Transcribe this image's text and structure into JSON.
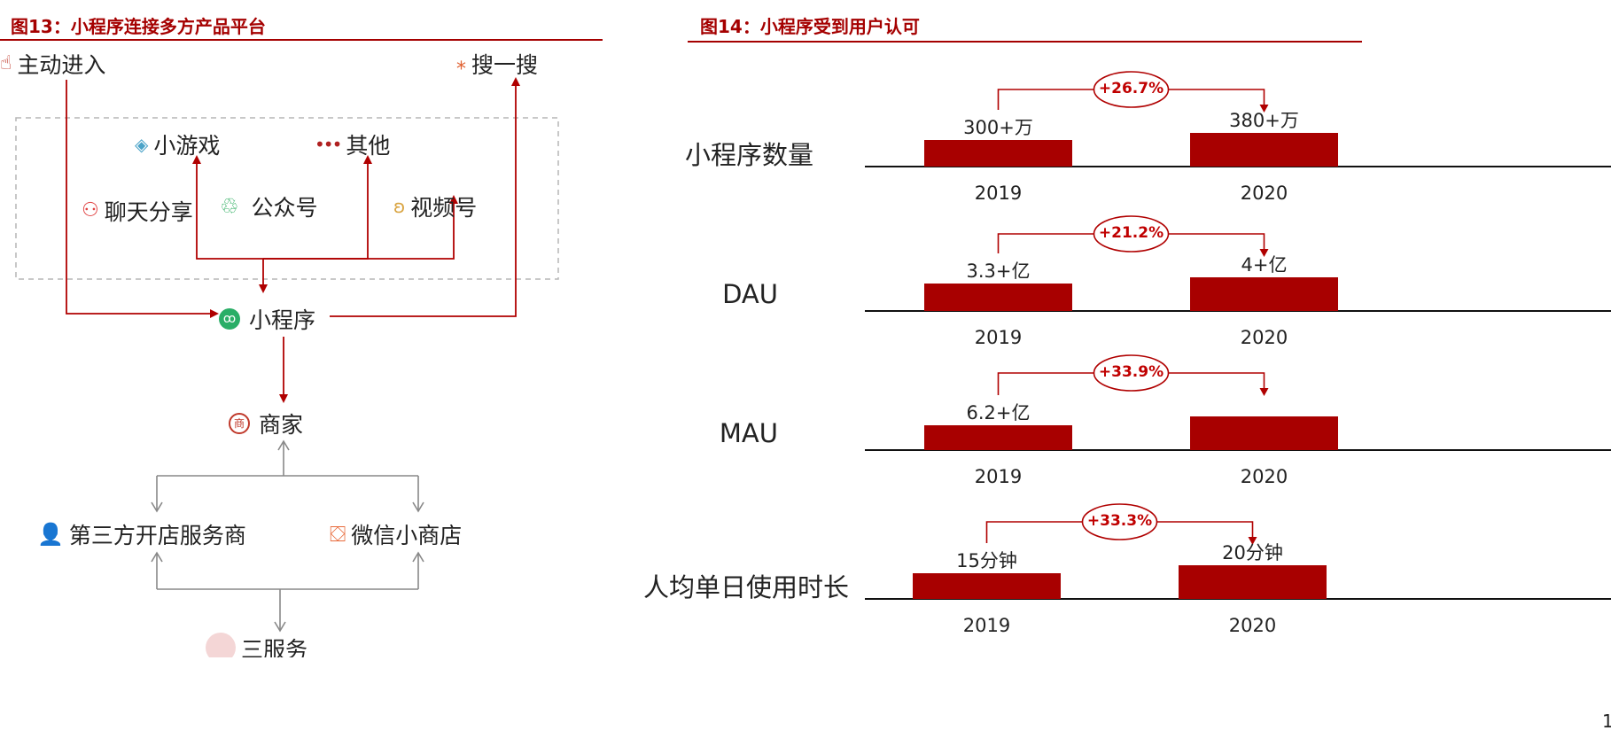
{
  "colors": {
    "accent": "#a50000",
    "arrow": "#b00000",
    "gray": "#888888",
    "bar": "#a80000"
  },
  "fig13": {
    "title": "图13：小程序连接多方产品平台",
    "nodes": {
      "active_entry": "主动进入",
      "search": "搜一搜",
      "mini_game": "小游戏",
      "others": "其他",
      "chat_share": "聊天分享",
      "official_account": "公众号",
      "channels": "视频号",
      "mini_program": "小程序",
      "merchant": "商家",
      "third_party": "第三方开店服务商",
      "wechat_shop": "微信小商店",
      "cut_off": "三服务"
    },
    "icons": [
      "hand-pointer-icon",
      "sparkle-icon",
      "diamond-game-icon",
      "dots-icon",
      "people-icon",
      "swirl-icon",
      "butterfly-icon",
      "mini-program-icon",
      "shop-badge-icon",
      "person-icon",
      "shopping-bag-icon"
    ]
  },
  "fig14": {
    "title": "图14：小程序受到用户认可",
    "page_number": "1"
  },
  "chart_data": {
    "type": "bar",
    "categories": [
      "2019",
      "2020"
    ],
    "series": [
      {
        "name": "小程序数量",
        "values": [
          300,
          380
        ],
        "labels": [
          "300+万",
          "380+万"
        ],
        "growth": "+26.7%"
      },
      {
        "name": "DAU",
        "values": [
          3.3,
          4
        ],
        "labels": [
          "3.3+亿",
          "4+亿"
        ],
        "growth": "+21.2%"
      },
      {
        "name": "MAU",
        "values": [
          6.2,
          8.3
        ],
        "labels": [
          "6.2+亿",
          ""
        ],
        "growth": "+33.9%"
      },
      {
        "name": "人均单日使用时长",
        "values": [
          15,
          20
        ],
        "labels": [
          "15分钟",
          "20分钟"
        ],
        "growth": "+33.3%"
      }
    ]
  }
}
